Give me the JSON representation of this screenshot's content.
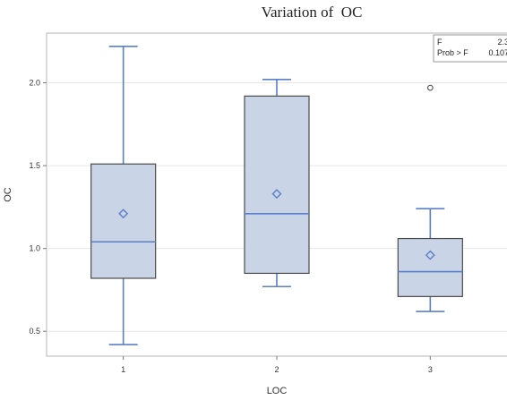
{
  "chart_data": {
    "type": "box",
    "title": "Variation of  OC",
    "xlabel": "LOC",
    "ylabel": "OC",
    "categories": [
      "1",
      "2",
      "3"
    ],
    "ylim": [
      0.35,
      2.3
    ],
    "yticks": [
      0.5,
      1.0,
      1.5,
      2.0
    ],
    "ytick_labels": [
      "0.5",
      "1.0",
      "1.5",
      "2.0"
    ],
    "grid": true,
    "boxes": [
      {
        "category": "1",
        "min": 0.42,
        "q1": 0.82,
        "median": 1.04,
        "q3": 1.51,
        "max": 2.22,
        "mean": 1.21,
        "outliers": []
      },
      {
        "category": "2",
        "min": 0.77,
        "q1": 0.85,
        "median": 1.21,
        "q3": 1.92,
        "max": 2.02,
        "mean": 1.33,
        "outliers": []
      },
      {
        "category": "3",
        "min": 0.62,
        "q1": 0.71,
        "median": 0.86,
        "q3": 1.06,
        "max": 1.24,
        "mean": 0.96,
        "outliers": [
          1.97
        ]
      }
    ],
    "inset": {
      "rows": [
        {
          "label": "F",
          "value": "2.3"
        },
        {
          "label": "Prob > F",
          "value": "0.107"
        }
      ]
    },
    "colors": {
      "box_fill": "#c9d5e6",
      "box_edge": "#4a4a4a",
      "line": "#5b7fc8",
      "grid": "#e6e6e6",
      "frame": "#b4b4b4",
      "outlier": "#555555"
    }
  }
}
